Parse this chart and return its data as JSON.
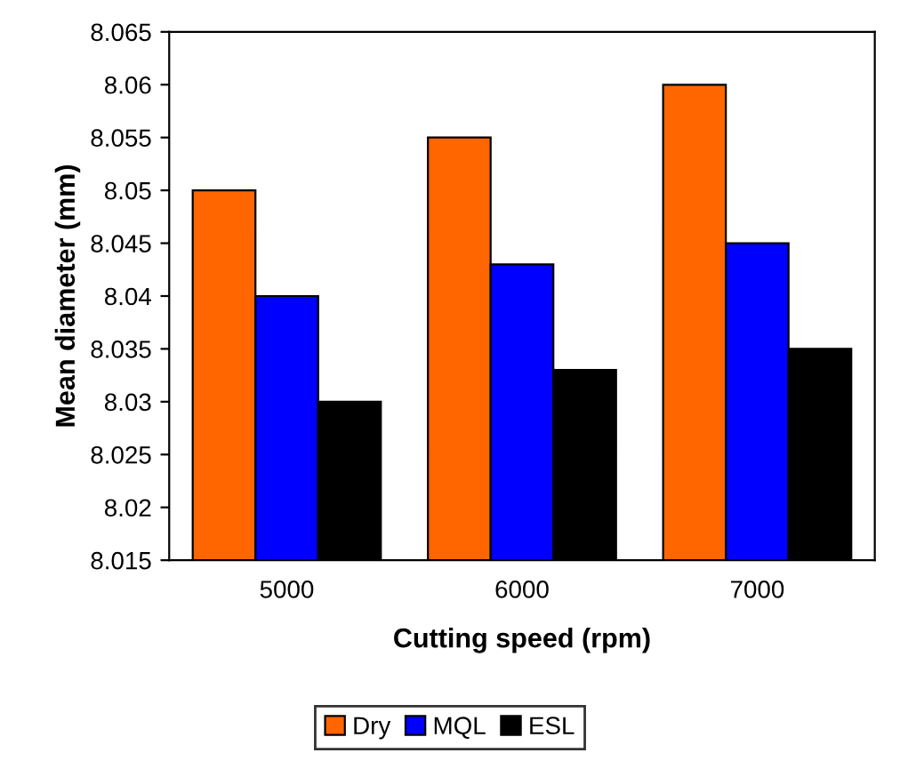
{
  "chart_data": {
    "type": "bar",
    "xlabel": "Cutting speed (rpm)",
    "ylabel": "Mean diameter (mm)",
    "categories": [
      "5000",
      "6000",
      "7000"
    ],
    "series": [
      {
        "name": "Dry",
        "color": "#ff6600",
        "values": [
          8.05,
          8.055,
          8.06
        ]
      },
      {
        "name": "MQL",
        "color": "#0000ff",
        "values": [
          8.04,
          8.043,
          8.045
        ]
      },
      {
        "name": "ESL",
        "color": "#000000",
        "values": [
          8.03,
          8.033,
          8.035
        ]
      }
    ],
    "ylim": [
      8.015,
      8.065
    ],
    "yticks": [
      8.015,
      8.02,
      8.025,
      8.03,
      8.035,
      8.04,
      8.045,
      8.05,
      8.055,
      8.06,
      8.065
    ],
    "grid": false,
    "legend": "bottom"
  }
}
